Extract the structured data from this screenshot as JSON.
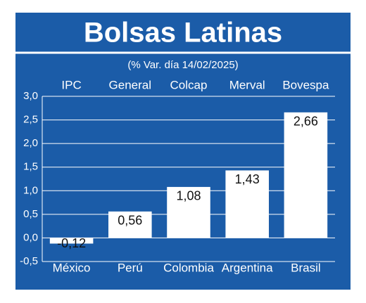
{
  "chart_data": {
    "type": "bar",
    "title": "Bolsas Latinas",
    "subtitle": "(% Var. día 14/02/2025)",
    "index_names": [
      "IPC",
      "General",
      "Colcap",
      "Merval",
      "Bovespa"
    ],
    "categories": [
      "México",
      "Perú",
      "Colombia",
      "Argentina",
      "Brasil"
    ],
    "values": [
      -0.12,
      0.56,
      1.08,
      1.43,
      2.66
    ],
    "value_labels": [
      "-0,12",
      "0,56",
      "1,08",
      "1,43",
      "2,66"
    ],
    "color": "#ffffff",
    "ylim": [
      -0.5,
      3.0
    ],
    "yticks": [
      {
        "value": -0.5,
        "label": "-0,5"
      },
      {
        "value": 0,
        "label": "0,0"
      },
      {
        "value": 0.5,
        "label": "0,5"
      },
      {
        "value": 1.0,
        "label": "1,0"
      },
      {
        "value": 1.5,
        "label": "1,5"
      },
      {
        "value": 2.0,
        "label": "2,0"
      },
      {
        "value": 2.5,
        "label": "2,5"
      },
      {
        "value": 3.0,
        "label": "3,0"
      }
    ],
    "grid": true
  }
}
